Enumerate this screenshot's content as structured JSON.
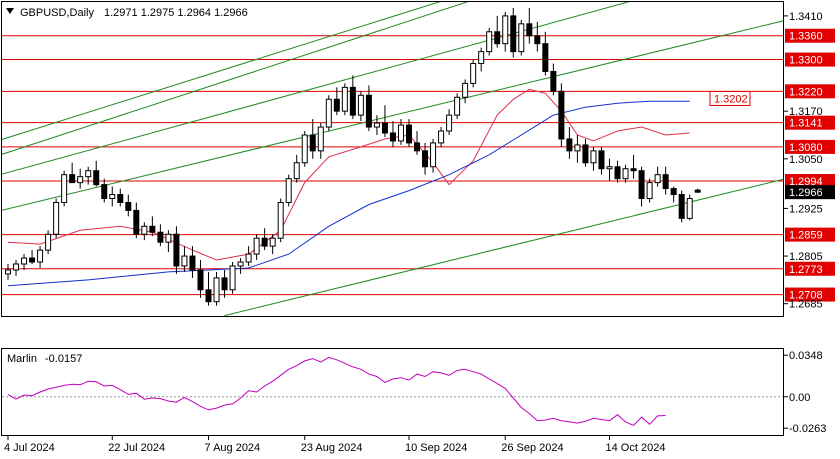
{
  "header": {
    "symbol": "GBPUSD,Daily",
    "ohlc": "1.2971 1.2975 1.2964 1.2966"
  },
  "indicator": {
    "name": "Marlin",
    "value": "-0.0157"
  },
  "colors": {
    "bull": "#ffffff",
    "bear": "#000000",
    "channel": "#1f8a1f",
    "level": "#e00000",
    "ma_fast": "#e0304a",
    "ma_slow": "#1030d0",
    "osc": "#c000c0",
    "grid": "#000000"
  },
  "chart_data": [
    {
      "type": "candlestick",
      "title": "GBPUSD,Daily",
      "ylim": [
        1.2654,
        1.3445
      ],
      "y_ticks": [
        1.341,
        1.336,
        1.33,
        1.322,
        1.317,
        1.3141,
        1.308,
        1.305,
        1.2994,
        1.2966,
        1.2925,
        1.2859,
        1.2805,
        1.2773,
        1.2708,
        1.2685
      ],
      "x_ticks": [
        {
          "i": 0,
          "label": "4 Jul 2024"
        },
        {
          "i": 13,
          "label": "22 Jul 2024"
        },
        {
          "i": 25,
          "label": "7 Aug 2024"
        },
        {
          "i": 37,
          "label": "23 Aug 2024"
        },
        {
          "i": 50,
          "label": "10 Sep 2024"
        },
        {
          "i": 62,
          "label": "26 Sep 2024"
        },
        {
          "i": 75,
          "label": "14 Oct 2024"
        }
      ],
      "levels": [
        1.336,
        1.33,
        1.322,
        1.3141,
        1.308,
        1.2994,
        1.2859,
        1.2773,
        1.2708
      ],
      "current_price": 1.2966,
      "highlight_label": 1.3202,
      "ohlc": [
        [
          1.276,
          1.2785,
          1.2745,
          1.277
        ],
        [
          1.277,
          1.2795,
          1.2755,
          1.2785
        ],
        [
          1.2785,
          1.281,
          1.277,
          1.28
        ],
        [
          1.28,
          1.282,
          1.2785,
          1.279
        ],
        [
          1.279,
          1.283,
          1.2775,
          1.282
        ],
        [
          1.282,
          1.287,
          1.281,
          1.286
        ],
        [
          1.286,
          1.295,
          1.285,
          1.294
        ],
        [
          1.294,
          1.302,
          1.293,
          1.301
        ],
        [
          1.301,
          1.304,
          1.2995,
          1.299
        ],
        [
          1.299,
          1.3025,
          1.2975,
          1.3005
        ],
        [
          1.3005,
          1.303,
          1.2985,
          1.302
        ],
        [
          1.302,
          1.3045,
          1.298,
          1.2985
        ],
        [
          1.2985,
          1.3,
          1.294,
          1.295
        ],
        [
          1.295,
          1.298,
          1.293,
          1.296
        ],
        [
          1.296,
          1.2975,
          1.293,
          1.294
        ],
        [
          1.294,
          1.296,
          1.2905,
          1.292
        ],
        [
          1.292,
          1.294,
          1.285,
          1.286
        ],
        [
          1.286,
          1.289,
          1.2845,
          1.288
        ],
        [
          1.288,
          1.2905,
          1.2855,
          1.2865
        ],
        [
          1.2865,
          1.2885,
          1.283,
          1.284
        ],
        [
          1.284,
          1.287,
          1.2815,
          1.286
        ],
        [
          1.286,
          1.288,
          1.276,
          1.278
        ],
        [
          1.278,
          1.283,
          1.2765,
          1.2805
        ],
        [
          1.2805,
          1.283,
          1.275,
          1.277
        ],
        [
          1.277,
          1.2795,
          1.27,
          1.272
        ],
        [
          1.272,
          1.2765,
          1.268,
          1.269
        ],
        [
          1.269,
          1.2765,
          1.268,
          1.275
        ],
        [
          1.275,
          1.277,
          1.27,
          1.272
        ],
        [
          1.272,
          1.279,
          1.271,
          1.278
        ],
        [
          1.278,
          1.28,
          1.276,
          1.279
        ],
        [
          1.279,
          1.283,
          1.278,
          1.281
        ],
        [
          1.281,
          1.286,
          1.2795,
          1.285
        ],
        [
          1.285,
          1.2875,
          1.282,
          1.283
        ],
        [
          1.283,
          1.286,
          1.281,
          1.285
        ],
        [
          1.285,
          1.295,
          1.284,
          1.294
        ],
        [
          1.294,
          1.301,
          1.293,
          1.3
        ],
        [
          1.3,
          1.306,
          1.299,
          1.304
        ],
        [
          1.304,
          1.312,
          1.303,
          1.311
        ],
        [
          1.311,
          1.315,
          1.305,
          1.307
        ],
        [
          1.307,
          1.314,
          1.305,
          1.313
        ],
        [
          1.313,
          1.321,
          1.312,
          1.32
        ],
        [
          1.32,
          1.323,
          1.316,
          1.317
        ],
        [
          1.317,
          1.324,
          1.316,
          1.323
        ],
        [
          1.323,
          1.326,
          1.315,
          1.316
        ],
        [
          1.316,
          1.322,
          1.3145,
          1.321
        ],
        [
          1.321,
          1.3235,
          1.312,
          1.313
        ],
        [
          1.313,
          1.316,
          1.311,
          1.314
        ],
        [
          1.314,
          1.3185,
          1.3105,
          1.3115
        ],
        [
          1.3115,
          1.3145,
          1.308,
          1.3095
        ],
        [
          1.3095,
          1.315,
          1.3085,
          1.3135
        ],
        [
          1.3135,
          1.315,
          1.308,
          1.309
        ],
        [
          1.309,
          1.312,
          1.306,
          1.307
        ],
        [
          1.307,
          1.309,
          1.301,
          1.303
        ],
        [
          1.303,
          1.31,
          1.3015,
          1.309
        ],
        [
          1.309,
          1.313,
          1.308,
          1.312
        ],
        [
          1.312,
          1.3175,
          1.311,
          1.316
        ],
        [
          1.316,
          1.3215,
          1.315,
          1.3205
        ],
        [
          1.3205,
          1.325,
          1.319,
          1.324
        ],
        [
          1.324,
          1.33,
          1.323,
          1.329
        ],
        [
          1.329,
          1.333,
          1.327,
          1.332
        ],
        [
          1.332,
          1.338,
          1.331,
          1.337
        ],
        [
          1.337,
          1.341,
          1.333,
          1.334
        ],
        [
          1.334,
          1.342,
          1.332,
          1.341
        ],
        [
          1.341,
          1.343,
          1.3305,
          1.332
        ],
        [
          1.332,
          1.34,
          1.331,
          1.339
        ],
        [
          1.339,
          1.343,
          1.334,
          1.336
        ],
        [
          1.336,
          1.3395,
          1.332,
          1.334
        ],
        [
          1.334,
          1.337,
          1.326,
          1.327
        ],
        [
          1.327,
          1.329,
          1.321,
          1.322
        ],
        [
          1.322,
          1.324,
          1.308,
          1.31
        ],
        [
          1.31,
          1.313,
          1.305,
          1.307
        ],
        [
          1.307,
          1.311,
          1.304,
          1.3085
        ],
        [
          1.3085,
          1.31,
          1.303,
          1.304
        ],
        [
          1.304,
          1.308,
          1.302,
          1.307
        ],
        [
          1.307,
          1.308,
          1.301,
          1.3025
        ],
        [
          1.3025,
          1.305,
          1.2995,
          1.303
        ],
        [
          1.303,
          1.3045,
          1.299,
          1.3
        ],
        [
          1.3,
          1.3035,
          1.299,
          1.3025
        ],
        [
          1.3025,
          1.306,
          1.3,
          1.302
        ],
        [
          1.302,
          1.303,
          1.293,
          1.295
        ],
        [
          1.295,
          1.3,
          1.294,
          1.299
        ],
        [
          1.299,
          1.303,
          1.298,
          1.301
        ],
        [
          1.301,
          1.303,
          1.296,
          1.2975
        ],
        [
          1.2975,
          1.298,
          1.294,
          1.296
        ],
        [
          1.296,
          1.297,
          1.289,
          1.29
        ],
        [
          1.29,
          1.296,
          1.2895,
          1.295
        ],
        [
          1.2971,
          1.2975,
          1.2964,
          1.2966
        ]
      ],
      "channel_lines": [
        {
          "from": [
            -10,
            1.304
          ],
          "to": [
            130,
            1.393
          ]
        },
        {
          "from": [
            -10,
            1.3
          ],
          "to": [
            98,
            1.3715
          ]
        },
        {
          "from": [
            -10,
            1.296
          ],
          "to": [
            98,
            1.356
          ]
        },
        {
          "from": [
            -10,
            1.2875
          ],
          "to": [
            98,
            1.3404
          ]
        },
        {
          "from": [
            27,
            1.2655
          ],
          "to": [
            98,
            1.3005
          ]
        }
      ],
      "ma_fast": [
        [
          0,
          1.284
        ],
        [
          4,
          1.2835
        ],
        [
          9,
          1.287
        ],
        [
          14,
          1.288
        ],
        [
          18,
          1.2865
        ],
        [
          23,
          1.282
        ],
        [
          26,
          1.2795
        ],
        [
          30,
          1.281
        ],
        [
          34,
          1.287
        ],
        [
          37,
          1.299
        ],
        [
          40,
          1.3055
        ],
        [
          44,
          1.308
        ],
        [
          47,
          1.31
        ],
        [
          50,
          1.311
        ],
        [
          53,
          1.304
        ],
        [
          55,
          1.2985
        ],
        [
          58,
          1.3045
        ],
        [
          61,
          1.316
        ],
        [
          63,
          1.32
        ],
        [
          65,
          1.3225
        ],
        [
          67,
          1.3215
        ],
        [
          69,
          1.317
        ],
        [
          71,
          1.311
        ],
        [
          73,
          1.3095
        ],
        [
          76,
          1.312
        ],
        [
          79,
          1.313
        ],
        [
          82,
          1.311
        ],
        [
          85,
          1.3115
        ]
      ],
      "ma_slow": [
        [
          0,
          1.273
        ],
        [
          10,
          1.2745
        ],
        [
          20,
          1.2765
        ],
        [
          25,
          1.277
        ],
        [
          30,
          1.2775
        ],
        [
          35,
          1.281
        ],
        [
          40,
          1.288
        ],
        [
          45,
          1.2935
        ],
        [
          50,
          1.297
        ],
        [
          55,
          1.301
        ],
        [
          60,
          1.306
        ],
        [
          64,
          1.311
        ],
        [
          68,
          1.316
        ],
        [
          72,
          1.318
        ],
        [
          76,
          1.319
        ],
        [
          80,
          1.3195
        ],
        [
          85,
          1.3195
        ]
      ]
    },
    {
      "type": "line",
      "title": "Marlin -0.0157",
      "ylim": [
        -0.032,
        0.04
      ],
      "y_ticks": [
        0.0348,
        0.0,
        -0.0263
      ],
      "values": [
        0.002,
        -0.002,
        0.0015,
        0.001,
        0.004,
        0.0065,
        0.008,
        0.0095,
        0.0105,
        0.01,
        0.013,
        0.0125,
        0.009,
        0.0095,
        0.006,
        0.002,
        0.003,
        -0.002,
        -0.001,
        -0.0015,
        -0.0035,
        -0.0045,
        -0.0005,
        -0.004,
        -0.008,
        -0.011,
        -0.0095,
        -0.007,
        -0.006,
        -0.001,
        0.005,
        0.004,
        0.009,
        0.013,
        0.018,
        0.023,
        0.026,
        0.03,
        0.032,
        0.029,
        0.033,
        0.031,
        0.028,
        0.025,
        0.023,
        0.019,
        0.017,
        0.012,
        0.015,
        0.016,
        0.014,
        0.019,
        0.017,
        0.021,
        0.02,
        0.018,
        0.022,
        0.023,
        0.021,
        0.019,
        0.015,
        0.011,
        0.007,
        -0.001,
        -0.009,
        -0.014,
        -0.02,
        -0.0195,
        -0.018,
        -0.02,
        -0.021,
        -0.022,
        -0.0205,
        -0.018,
        -0.019,
        -0.02,
        -0.015,
        -0.021,
        -0.024,
        -0.017,
        -0.023,
        -0.016,
        -0.0157
      ]
    }
  ]
}
